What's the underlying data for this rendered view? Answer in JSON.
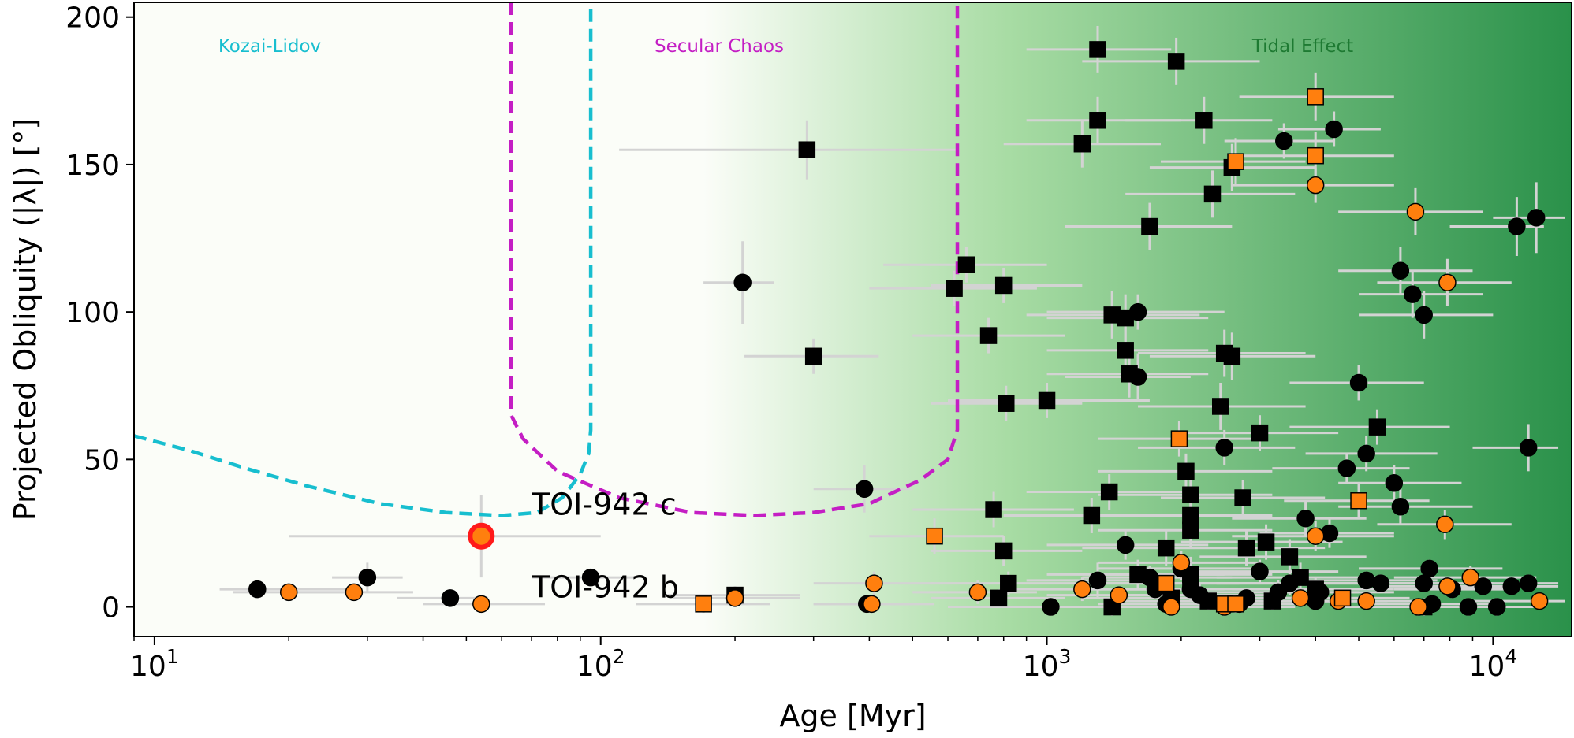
{
  "chart_data": {
    "type": "scatter",
    "xscale": "log",
    "xlim": [
      9,
      15000
    ],
    "ylim": [
      -10,
      205
    ],
    "xlabel": "Age [Myr]",
    "ylabel": "Projected Obliquity (|λ|) [°]",
    "xticks": [
      {
        "value": 10,
        "base": "10",
        "exp": "1"
      },
      {
        "value": 100,
        "base": "10",
        "exp": "2"
      },
      {
        "value": 1000,
        "base": "10",
        "exp": "3"
      },
      {
        "value": 10000,
        "base": "10",
        "exp": "4"
      }
    ],
    "yticks": [
      0,
      50,
      100,
      150,
      200
    ],
    "colors": {
      "black_marker": "#000000",
      "orange_marker": "#ff7f0e",
      "errorbar": "#d3d3d3",
      "kozai": "#17becf",
      "secular": "#c41ec4",
      "tidal_text": "#1e7a32",
      "highlight_fill": "#ff7f0e",
      "highlight_edge": "#ff1a1a",
      "tidal_gradient_start": "#fbfdf8",
      "tidal_gradient_mid": "#a8dca4",
      "tidal_gradient_end": "#2a914a"
    },
    "regions": [
      {
        "name": "Kozai-Lidov",
        "color": "#17becf",
        "boundary": [
          [
            9,
            58
          ],
          [
            12,
            53
          ],
          [
            16,
            47
          ],
          [
            22,
            41
          ],
          [
            32,
            35
          ],
          [
            45,
            32
          ],
          [
            60,
            31
          ],
          [
            72,
            32
          ],
          [
            82,
            37
          ],
          [
            90,
            45
          ],
          [
            94,
            52
          ],
          [
            95,
            60
          ],
          [
            95,
            205
          ]
        ]
      },
      {
        "name": "Secular Chaos",
        "color": "#c41ec4",
        "boundary": [
          [
            63,
            205
          ],
          [
            63,
            65
          ],
          [
            67,
            57
          ],
          [
            80,
            46
          ],
          [
            110,
            37
          ],
          [
            160,
            32
          ],
          [
            220,
            31
          ],
          [
            300,
            32
          ],
          [
            400,
            35
          ],
          [
            520,
            43
          ],
          [
            600,
            50
          ],
          [
            630,
            60
          ],
          [
            630,
            205
          ]
        ]
      },
      {
        "name": "Tidal Effect",
        "color": "#1e7a32"
      }
    ],
    "region_labels": [
      {
        "text": "Kozai-Lidov",
        "color": "#17becf"
      },
      {
        "text": "Secular Chaos",
        "color": "#c41ec4"
      },
      {
        "text": "Tidal Effect",
        "color": "#1e7a32"
      }
    ],
    "annotations": [
      {
        "text": "TOI-942 c",
        "x": 70,
        "y": 35
      },
      {
        "text": "TOI-942 b",
        "x": 70,
        "y": 7
      }
    ],
    "series": [
      {
        "name": "TOI-942 c",
        "marker": "circle-highlight",
        "points": [
          [
            54,
            24,
            20,
            100,
            14
          ]
        ]
      },
      {
        "name": "black circles",
        "marker": "circle",
        "color": "#000000",
        "points": [
          [
            17,
            6,
            14,
            28,
            3
          ],
          [
            30,
            10,
            25,
            36,
            5
          ],
          [
            46,
            3,
            35,
            56,
            3
          ],
          [
            95,
            10,
            70,
            120,
            3
          ],
          [
            208,
            110,
            170,
            245,
            14
          ],
          [
            390,
            40,
            300,
            500,
            8
          ],
          [
            395,
            1,
            300,
            500,
            3
          ],
          [
            1020,
            0,
            600,
            1700,
            3
          ],
          [
            1300,
            9,
            900,
            1700,
            6
          ],
          [
            1600,
            100,
            1000,
            2500,
            6
          ],
          [
            1600,
            78,
            1100,
            2100,
            8
          ],
          [
            1700,
            10,
            1200,
            2600,
            4
          ],
          [
            2000,
            13,
            1300,
            3000,
            4
          ],
          [
            2200,
            4,
            1400,
            3300,
            4
          ],
          [
            2500,
            54,
            1600,
            3600,
            6
          ],
          [
            2800,
            3,
            1800,
            4000,
            3
          ],
          [
            3000,
            12,
            2000,
            4500,
            4
          ],
          [
            3300,
            5,
            2200,
            5000,
            4
          ],
          [
            3500,
            8,
            2400,
            5200,
            4
          ],
          [
            3400,
            158,
            2500,
            4400,
            6
          ],
          [
            3800,
            30,
            2600,
            5200,
            6
          ],
          [
            4000,
            2,
            2700,
            5800,
            3
          ],
          [
            4100,
            5,
            2800,
            6000,
            3
          ],
          [
            4300,
            25,
            3000,
            6000,
            5
          ],
          [
            4400,
            162,
            3300,
            5600,
            6
          ],
          [
            4700,
            47,
            3200,
            6500,
            5
          ],
          [
            5000,
            76,
            3500,
            7000,
            6
          ],
          [
            5200,
            52,
            3800,
            7500,
            6
          ],
          [
            5200,
            9,
            3800,
            7500,
            3
          ],
          [
            5600,
            8,
            4000,
            8000,
            3
          ],
          [
            6000,
            42,
            4500,
            8500,
            6
          ],
          [
            6200,
            34,
            4500,
            9000,
            6
          ],
          [
            6200,
            114,
            4500,
            9000,
            8
          ],
          [
            6600,
            106,
            5000,
            9500,
            8
          ],
          [
            7000,
            99,
            5000,
            10000,
            8
          ],
          [
            7000,
            8,
            5000,
            10000,
            3
          ],
          [
            7200,
            13,
            5000,
            10500,
            3
          ],
          [
            7300,
            1,
            5000,
            10500,
            3
          ],
          [
            8100,
            6,
            6000,
            11000,
            3
          ],
          [
            8800,
            0,
            6500,
            12000,
            3
          ],
          [
            9500,
            7,
            7000,
            12000,
            3
          ],
          [
            10200,
            0,
            7500,
            13000,
            3
          ],
          [
            11000,
            7,
            8000,
            14000,
            3
          ],
          [
            11300,
            129,
            8000,
            13000,
            10
          ],
          [
            12000,
            8,
            9000,
            14000,
            3
          ],
          [
            12000,
            54,
            9000,
            14000,
            8
          ],
          [
            12500,
            132,
            10000,
            14500,
            12
          ],
          [
            1500,
            21,
            1000,
            2300,
            5
          ],
          [
            1750,
            6,
            1200,
            2500,
            3
          ],
          [
            1850,
            1,
            1300,
            2700,
            3
          ],
          [
            2100,
            6,
            1400,
            3000,
            3
          ],
          [
            2700,
            1,
            1800,
            3800,
            3
          ]
        ]
      },
      {
        "name": "black squares",
        "marker": "square",
        "color": "#000000",
        "points": [
          [
            200,
            4,
            140,
            280,
            3
          ],
          [
            290,
            155,
            110,
            630,
            10
          ],
          [
            300,
            85,
            210,
            420,
            6
          ],
          [
            620,
            108,
            400,
            950,
            6
          ],
          [
            660,
            116,
            430,
            1000,
            6
          ],
          [
            740,
            92,
            500,
            1100,
            6
          ],
          [
            760,
            33,
            500,
            1150,
            6
          ],
          [
            780,
            3,
            550,
            1100,
            3
          ],
          [
            800,
            19,
            550,
            1200,
            5
          ],
          [
            800,
            109,
            550,
            1200,
            6
          ],
          [
            810,
            69,
            550,
            1200,
            6
          ],
          [
            820,
            8,
            550,
            1250,
            4
          ],
          [
            1000,
            70,
            600,
            1700,
            6
          ],
          [
            1200,
            157,
            800,
            1800,
            8
          ],
          [
            1260,
            31,
            800,
            2000,
            6
          ],
          [
            1300,
            165,
            900,
            2000,
            8
          ],
          [
            1300,
            189,
            900,
            1900,
            8
          ],
          [
            1380,
            39,
            900,
            2100,
            6
          ],
          [
            1400,
            99,
            900,
            2200,
            8
          ],
          [
            1500,
            98,
            1000,
            2300,
            8
          ],
          [
            1500,
            87,
            1000,
            2300,
            8
          ],
          [
            1530,
            79,
            1000,
            2300,
            8
          ],
          [
            1400,
            0,
            1000,
            2000,
            3
          ],
          [
            1600,
            11,
            1000,
            2500,
            5
          ],
          [
            1700,
            129,
            1100,
            2600,
            8
          ],
          [
            1850,
            20,
            1200,
            2800,
            6
          ],
          [
            1950,
            185,
            1200,
            3000,
            8
          ],
          [
            2050,
            46,
            1300,
            3200,
            6
          ],
          [
            2100,
            38,
            1300,
            3200,
            6
          ],
          [
            2100,
            31,
            1300,
            3200,
            6
          ],
          [
            2100,
            26,
            1300,
            3200,
            6
          ],
          [
            2100,
            11,
            1300,
            3200,
            6
          ],
          [
            2100,
            8,
            1300,
            3200,
            6
          ],
          [
            2250,
            165,
            1500,
            3200,
            8
          ],
          [
            2350,
            140,
            1500,
            3600,
            8
          ],
          [
            2450,
            68,
            1600,
            3800,
            8
          ],
          [
            2500,
            86,
            1600,
            3800,
            8
          ],
          [
            2600,
            85,
            1700,
            4000,
            8
          ],
          [
            2600,
            149,
            1700,
            4000,
            8
          ],
          [
            2750,
            37,
            1800,
            4200,
            6
          ],
          [
            2800,
            20,
            1800,
            4200,
            6
          ],
          [
            3000,
            59,
            2000,
            4500,
            6
          ],
          [
            3100,
            22,
            2000,
            4600,
            6
          ],
          [
            3500,
            17,
            2200,
            5200,
            6
          ],
          [
            3700,
            10,
            2400,
            5500,
            5
          ],
          [
            4000,
            6,
            2600,
            6000,
            4
          ],
          [
            5500,
            61,
            3500,
            8000,
            6
          ],
          [
            7000,
            0,
            4500,
            10000,
            3
          ],
          [
            1900,
            3,
            1200,
            2900,
            3
          ],
          [
            2300,
            2,
            1500,
            3500,
            3
          ],
          [
            3200,
            2,
            2000,
            4800,
            3
          ]
        ]
      },
      {
        "name": "orange circles",
        "marker": "circle",
        "color": "#ff7f0e",
        "points": [
          [
            20,
            5,
            15,
            28,
            3
          ],
          [
            28,
            5,
            20,
            38,
            3
          ],
          [
            54,
            1,
            40,
            75,
            3
          ],
          [
            200,
            3,
            145,
            280,
            3
          ],
          [
            405,
            1,
            300,
            560,
            3
          ],
          [
            410,
            8,
            300,
            560,
            4
          ],
          [
            700,
            5,
            500,
            950,
            4
          ],
          [
            1200,
            6,
            800,
            1800,
            4
          ],
          [
            1450,
            4,
            1000,
            2100,
            3
          ],
          [
            1900,
            0,
            1300,
            2800,
            3
          ],
          [
            2000,
            15,
            1300,
            3000,
            4
          ],
          [
            2500,
            0,
            1700,
            3600,
            3
          ],
          [
            4000,
            143,
            2600,
            6000,
            6
          ],
          [
            4000,
            24,
            2600,
            6000,
            5
          ],
          [
            5200,
            2,
            3500,
            7500,
            3
          ],
          [
            6700,
            134,
            4500,
            9500,
            8
          ],
          [
            6800,
            0,
            4500,
            9500,
            3
          ],
          [
            7800,
            28,
            5500,
            11000,
            5
          ],
          [
            7900,
            110,
            5500,
            11000,
            8
          ],
          [
            7900,
            7,
            5500,
            11000,
            3
          ],
          [
            8900,
            10,
            6000,
            12500,
            4
          ],
          [
            12700,
            2,
            9000,
            14500,
            3
          ],
          [
            3700,
            3,
            2500,
            5500,
            3
          ],
          [
            4500,
            2,
            3000,
            6500,
            3
          ]
        ]
      },
      {
        "name": "orange squares",
        "marker": "square",
        "color": "#ff7f0e",
        "points": [
          [
            170,
            1,
            120,
            240,
            3
          ],
          [
            560,
            24,
            400,
            800,
            6
          ],
          [
            1980,
            57,
            1300,
            3000,
            6
          ],
          [
            2500,
            1,
            1700,
            3600,
            3
          ],
          [
            2650,
            151,
            1800,
            3800,
            8
          ],
          [
            2650,
            1,
            1800,
            3800,
            3
          ],
          [
            4000,
            173,
            2700,
            6000,
            8
          ],
          [
            4000,
            153,
            2700,
            6000,
            8
          ],
          [
            4600,
            3,
            3100,
            6500,
            3
          ],
          [
            5000,
            36,
            3400,
            7200,
            6
          ],
          [
            1850,
            8,
            1300,
            2700,
            3
          ]
        ]
      }
    ]
  }
}
